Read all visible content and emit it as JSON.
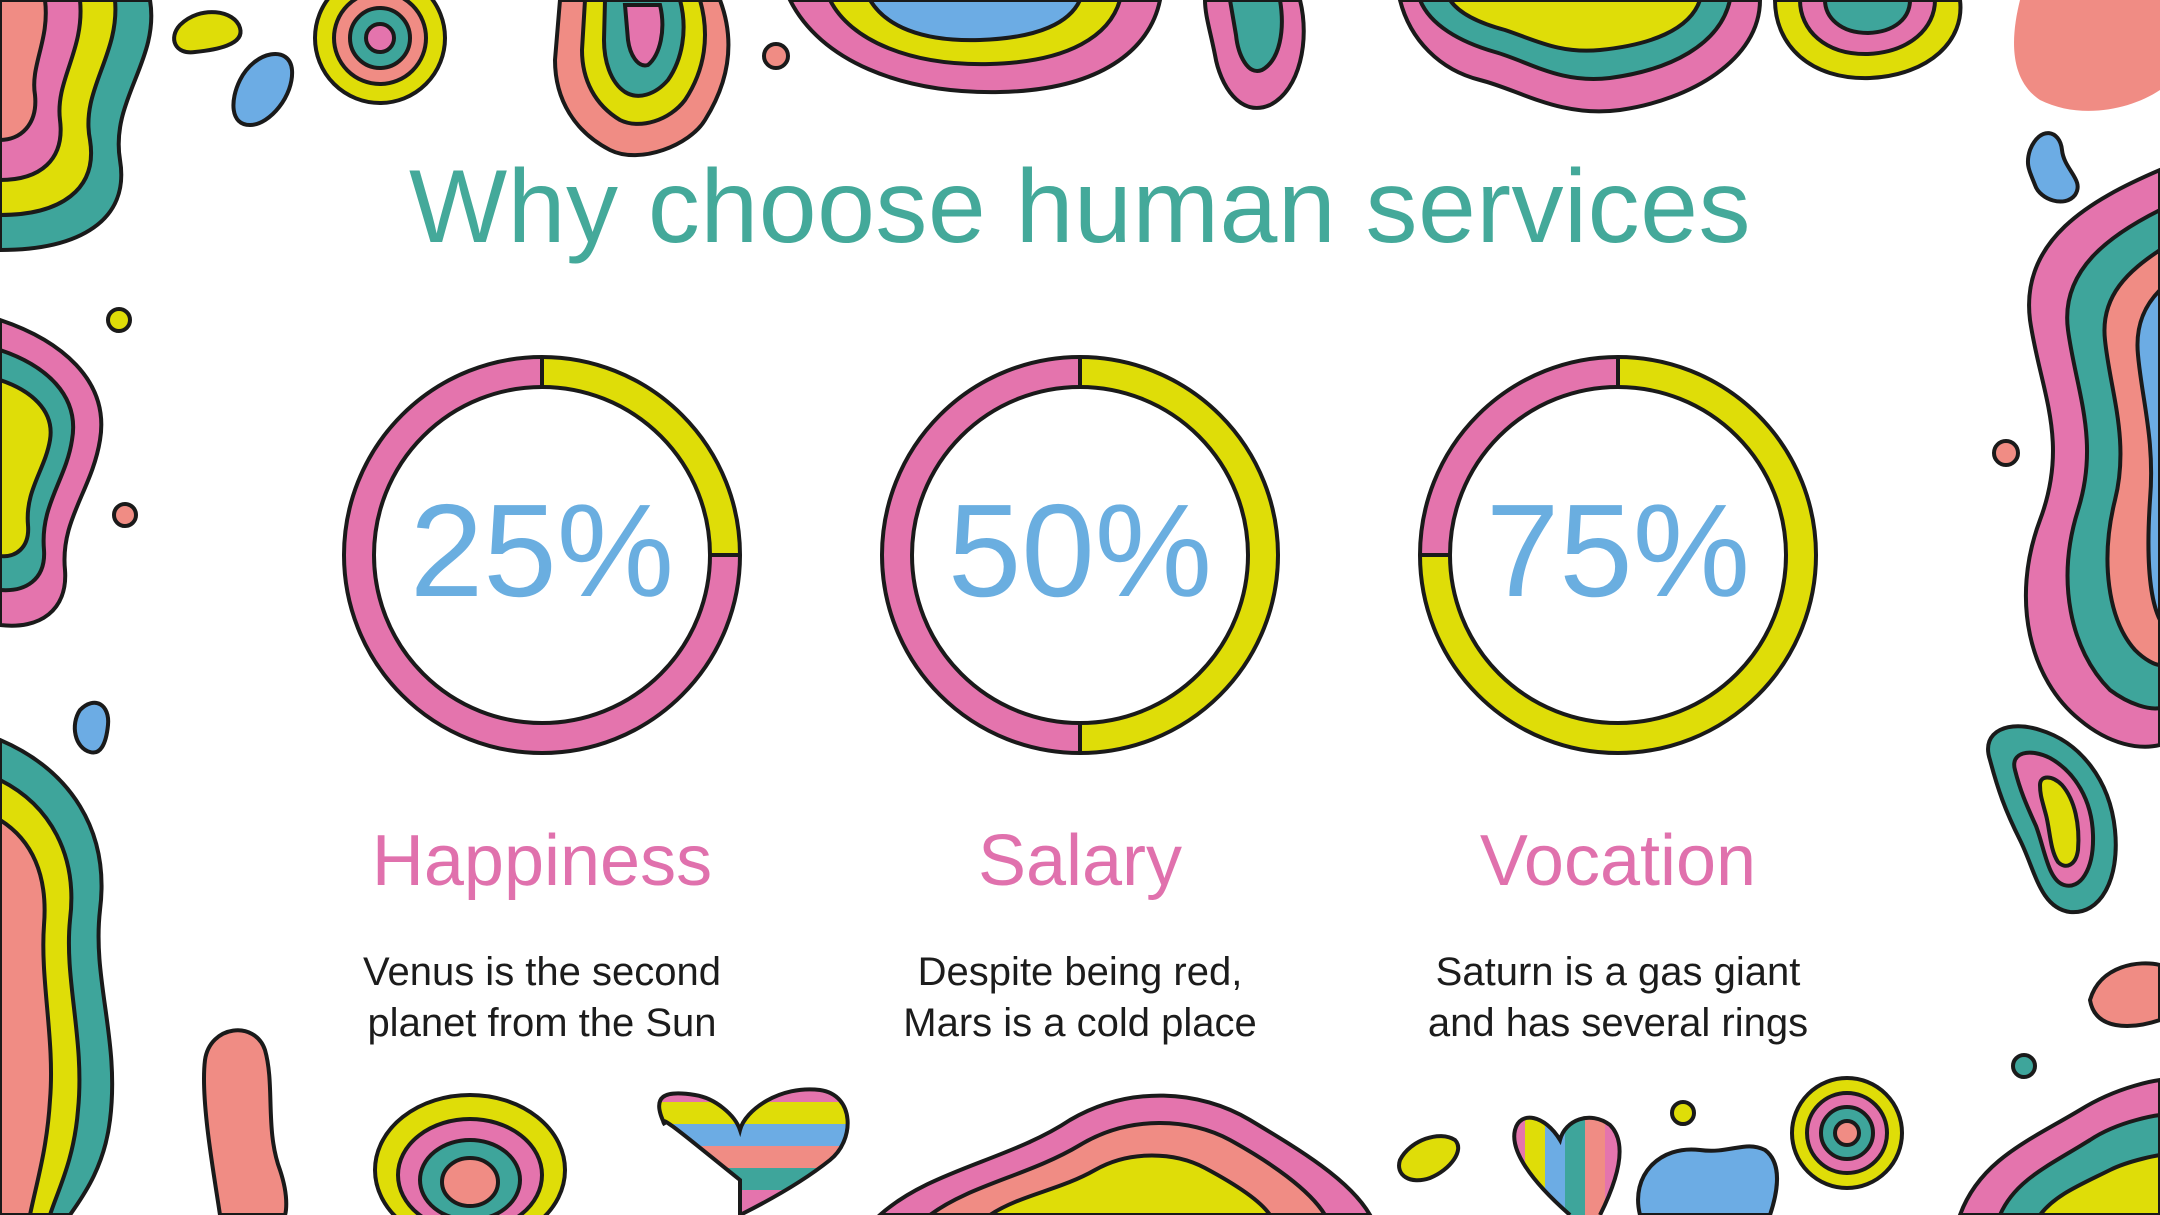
{
  "slide": {
    "title": "Why choose human services"
  },
  "colors": {
    "title": "#44a99a",
    "percent": "#6aaee0",
    "label": "#e071ad",
    "ring_pink": "#e474ad",
    "ring_yellow": "#dfdd08",
    "ring_outline": "#1a1a1a",
    "deco_teal": "#3ea59b",
    "deco_salmon": "#f08c84",
    "deco_blue": "#6cace4"
  },
  "stats": [
    {
      "percent_label": "25%",
      "value": 0.25,
      "label": "Happiness",
      "desc_line1": "Venus is the second",
      "desc_line2": "planet from the Sun"
    },
    {
      "percent_label": "50%",
      "value": 0.5,
      "label": "Salary",
      "desc_line1": "Despite being red,",
      "desc_line2": "Mars is a cold place"
    },
    {
      "percent_label": "75%",
      "value": 0.75,
      "label": "Vocation",
      "desc_line1": "Saturn is a gas giant",
      "desc_line2": "and has several rings"
    }
  ],
  "decorations": {
    "icons": [
      "wavy-blob-icon",
      "concentric-circle-icon",
      "striped-heart-icon",
      "dot-icon"
    ]
  }
}
